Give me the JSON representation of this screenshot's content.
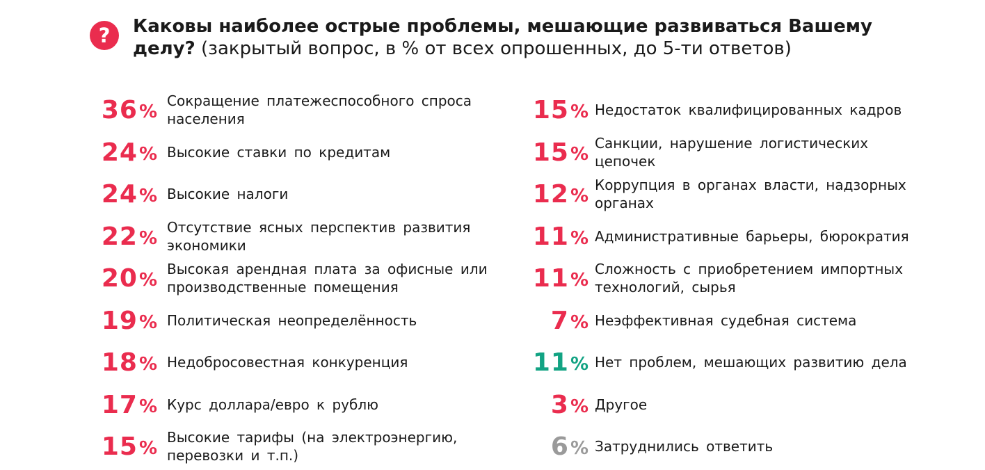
{
  "header": {
    "icon": "question-icon",
    "icon_glyph": "?",
    "title_bold": "Каковы наиболее острые проблемы, мешающие развиваться Вашему делу?",
    "title_note": " (закрытый вопрос, в % от всех опрошенных, до 5-ти ответов)"
  },
  "colors": {
    "accent_red": "#ea2c4e",
    "accent_green": "#12a383",
    "muted_gray": "#9a9a9a"
  },
  "left_items": [
    {
      "value": "36",
      "unit": "%",
      "label": "Сокращение платежеспособного спроса населения",
      "color": "red"
    },
    {
      "value": "24",
      "unit": "%",
      "label": "Высокие ставки по кредитам",
      "color": "red"
    },
    {
      "value": "24",
      "unit": "%",
      "label": "Высокие налоги",
      "color": "red"
    },
    {
      "value": "22",
      "unit": "%",
      "label": "Отсутствие ясных перспектив развития экономики",
      "color": "red"
    },
    {
      "value": "20",
      "unit": "%",
      "label": "Высокая арендная плата за офисные или производственные помещения",
      "color": "red"
    },
    {
      "value": "19",
      "unit": "%",
      "label": "Политическая неопределённость",
      "color": "red"
    },
    {
      "value": "18",
      "unit": "%",
      "label": "Недобросовестная конкуренция",
      "color": "red"
    },
    {
      "value": "17",
      "unit": "%",
      "label": "Курс доллара/евро к рублю",
      "color": "red"
    },
    {
      "value": "15",
      "unit": "%",
      "label": "Высокие тарифы (на электроэнергию, перевозки и т.п.)",
      "color": "red"
    }
  ],
  "right_items": [
    {
      "value": "15",
      "unit": "%",
      "label": "Недостаток квалифицированных кадров",
      "color": "red"
    },
    {
      "value": "15",
      "unit": "%",
      "label": "Санкции, нарушение логистических цепочек",
      "color": "red"
    },
    {
      "value": "12",
      "unit": "%",
      "label": "Коррупция в органах власти, надзорных органах",
      "color": "red"
    },
    {
      "value": "11",
      "unit": "%",
      "label": "Административные барьеры, бюрократия",
      "color": "red"
    },
    {
      "value": "11",
      "unit": "%",
      "label": "Сложность с приобретением импортных технологий, сырья",
      "color": "red"
    },
    {
      "value": "7",
      "unit": "%",
      "label": "Неэффективная судебная система",
      "color": "red"
    },
    {
      "value": "11",
      "unit": "%",
      "label": "Нет проблем, мешающих развитию дела",
      "color": "green"
    },
    {
      "value": "3",
      "unit": "%",
      "label": "Другое",
      "color": "red"
    },
    {
      "value": "6",
      "unit": "%",
      "label": "Затруднились ответить",
      "color": "gray"
    }
  ]
}
